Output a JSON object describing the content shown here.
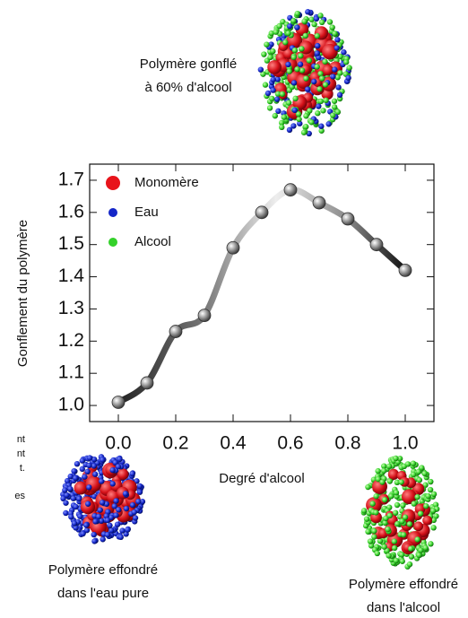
{
  "chart_data": {
    "type": "scatter",
    "x_label": "Degré d'alcool",
    "y_label": "Gonflement du polymère",
    "x": [
      0.0,
      0.1,
      0.2,
      0.3,
      0.4,
      0.5,
      0.6,
      0.7,
      0.8,
      0.9,
      1.0
    ],
    "values": [
      1.01,
      1.07,
      1.23,
      1.28,
      1.49,
      1.6,
      1.67,
      1.63,
      1.58,
      1.5,
      1.42
    ],
    "xlim": [
      -0.1,
      1.1
    ],
    "ylim": [
      0.95,
      1.75
    ],
    "xticks": [
      {
        "value": 0,
        "label": "0.0"
      },
      0.2,
      0.4,
      0.6,
      0.8,
      {
        "value": 1,
        "label": "1.0"
      }
    ],
    "yticks": [
      {
        "value": 1,
        "label": "1.0"
      },
      1.1,
      1.2,
      1.3,
      1.4,
      1.5,
      1.6,
      1.7
    ],
    "legend": [
      {
        "name": "Monomère",
        "color": "#e8141b"
      },
      {
        "name": "Eau",
        "color": "#1426c8"
      },
      {
        "name": "Alcool",
        "color": "#34d12a"
      }
    ],
    "annotations": [
      {
        "lines": [
          "Polymère gonflé",
          "à 60% d'alcool"
        ]
      },
      {
        "lines": [
          "Polymère effondré",
          "dans l'eau pure"
        ]
      },
      {
        "lines": [
          "Polymère effondré",
          "dans l'alcool"
        ]
      }
    ],
    "fragments": [
      "nt",
      "nt",
      "t.",
      "es"
    ]
  }
}
